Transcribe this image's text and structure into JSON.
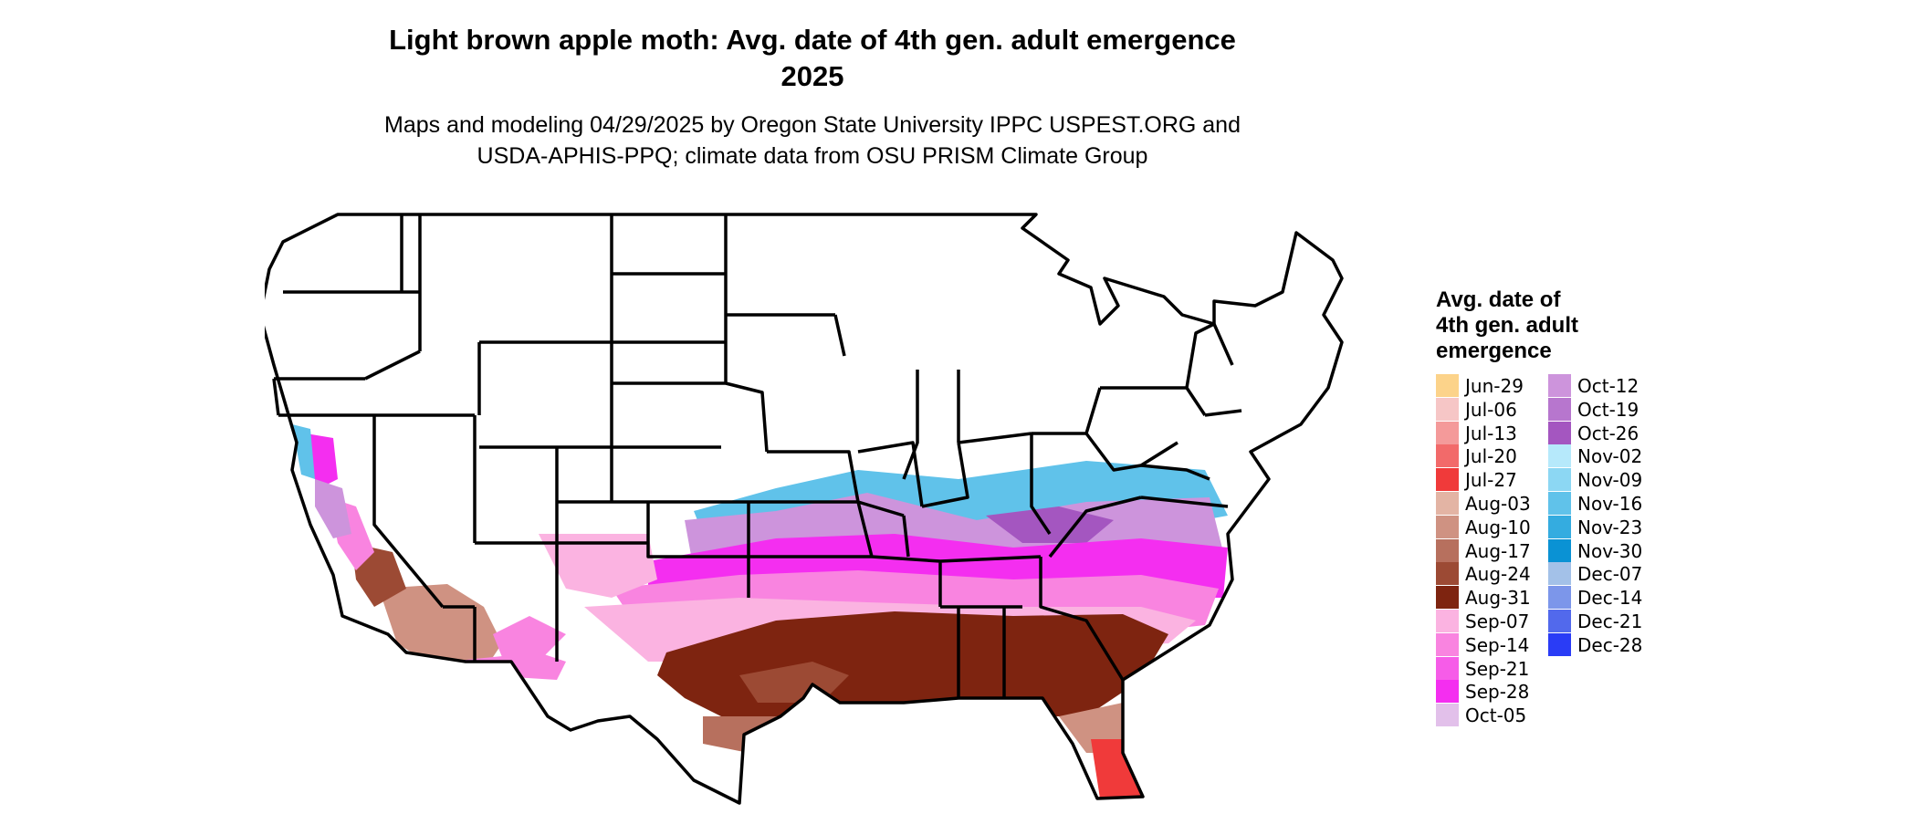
{
  "title_lines": [
    "Light brown apple moth: Avg. date of 4th gen. adult emergence",
    "2025"
  ],
  "subtitle_lines": [
    "Maps and modeling 04/29/2025 by Oregon State University IPPC USPEST.ORG and",
    "USDA-APHIS-PPQ; climate data from OSU PRISM Climate Group"
  ],
  "legend": {
    "title_lines": [
      "Avg. date of",
      "4th gen. adult",
      "emergence"
    ],
    "columns": [
      [
        {
          "label": "Jun-29",
          "color": "#fcd38a"
        },
        {
          "label": "Jul-06",
          "color": "#f6c6c6"
        },
        {
          "label": "Jul-13",
          "color": "#f49a9a"
        },
        {
          "label": "Jul-20",
          "color": "#f26a6a"
        },
        {
          "label": "Jul-27",
          "color": "#f03a3a"
        },
        {
          "label": "Aug-03",
          "color": "#e3b4a4"
        },
        {
          "label": "Aug-10",
          "color": "#cf9282"
        },
        {
          "label": "Aug-17",
          "color": "#b7705e"
        },
        {
          "label": "Aug-24",
          "color": "#9c4a34"
        },
        {
          "label": "Aug-31",
          "color": "#7e2410"
        },
        {
          "label": "Sep-07",
          "color": "#fbb3e1"
        },
        {
          "label": "Sep-14",
          "color": "#f984e0"
        },
        {
          "label": "Sep-21",
          "color": "#f65ce8"
        },
        {
          "label": "Sep-28",
          "color": "#f42ef0"
        },
        {
          "label": "Oct-05",
          "color": "#e2c0ea"
        }
      ],
      [
        {
          "label": "Oct-12",
          "color": "#cd94dc"
        },
        {
          "label": "Oct-19",
          "color": "#b776ce"
        },
        {
          "label": "Oct-26",
          "color": "#a456c0"
        },
        {
          "label": "Nov-02",
          "color": "#b6e9fb"
        },
        {
          "label": "Nov-09",
          "color": "#8cd7f3"
        },
        {
          "label": "Nov-16",
          "color": "#60c2ea"
        },
        {
          "label": "Nov-23",
          "color": "#34ace0"
        },
        {
          "label": "Nov-30",
          "color": "#0a92d4"
        },
        {
          "label": "Dec-07",
          "color": "#a3c1e8"
        },
        {
          "label": "Dec-14",
          "color": "#7c96ea"
        },
        {
          "label": "Dec-21",
          "color": "#5269ec"
        },
        {
          "label": "Dec-28",
          "color": "#2a3cf6"
        }
      ]
    ]
  }
}
